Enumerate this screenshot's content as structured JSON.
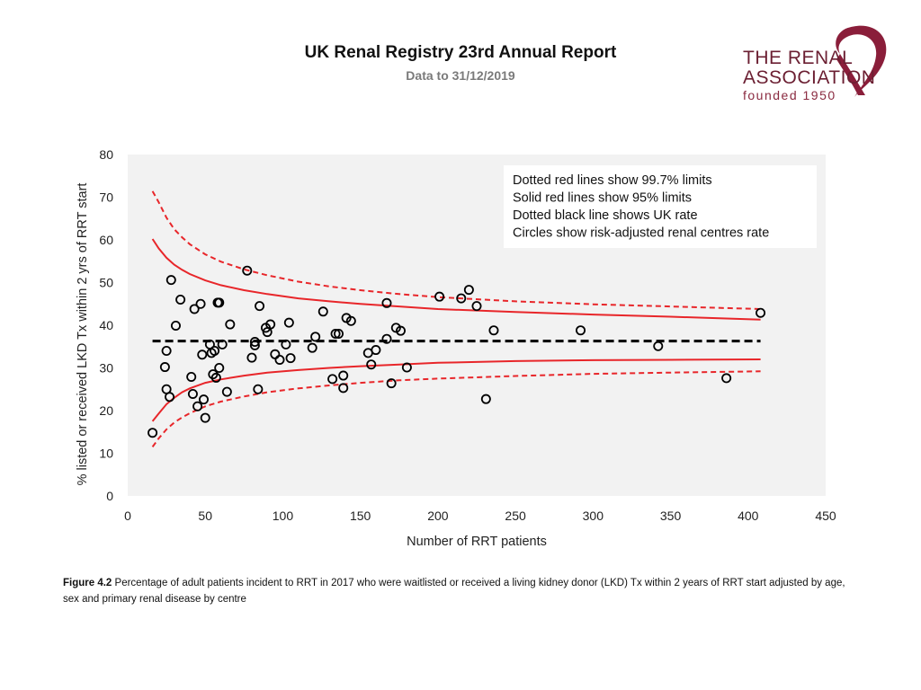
{
  "header": {
    "title": "UK Renal Registry 23rd Annual Report",
    "subtitle": "Data to 31/12/2019"
  },
  "logo": {
    "line1": "THE RENAL",
    "line2": "ASSOCIATION",
    "line3": "founded 1950",
    "color": "#6b1f32"
  },
  "chart_data": {
    "type": "scatter",
    "title": "",
    "xlabel": "Number of RRT patients",
    "ylabel": "% listed or received LKD Tx within 2 yrs of RRT start",
    "xlim": [
      0,
      450
    ],
    "ylim": [
      0,
      80
    ],
    "xticks": [
      0,
      50,
      100,
      150,
      200,
      250,
      300,
      350,
      400,
      450
    ],
    "yticks": [
      0,
      10,
      20,
      30,
      40,
      50,
      60,
      70,
      80
    ],
    "grid": false,
    "legend": [
      "Dotted red lines show 99.7% limits",
      "Solid red lines show 95% limits",
      "Dotted black line shows UK rate",
      "Circles show risk-adjusted renal centres rate"
    ],
    "legend_position": "top-right",
    "uk_rate": 36.3,
    "colors": {
      "limits": "#e8262a",
      "uk_rate": "#000000",
      "points": "#000000",
      "background": "#f2f2f2"
    },
    "funnel_x": [
      16,
      20,
      25,
      30,
      35,
      40,
      50,
      60,
      75,
      90,
      110,
      130,
      150,
      175,
      200,
      250,
      300,
      350,
      408
    ],
    "upper_95": [
      60.2,
      58.0,
      55.8,
      54.2,
      53.0,
      52.0,
      50.5,
      49.4,
      48.2,
      47.3,
      46.3,
      45.6,
      45.0,
      44.4,
      43.8,
      43.1,
      42.5,
      42.0,
      41.3
    ],
    "lower_95": [
      17.5,
      19.3,
      21.5,
      23.0,
      24.3,
      25.2,
      26.5,
      27.3,
      28.2,
      28.9,
      29.5,
      30.0,
      30.4,
      30.8,
      31.2,
      31.6,
      31.8,
      31.9,
      32.0
    ],
    "upper_997": [
      71.4,
      68.8,
      65.2,
      62.5,
      60.6,
      59.0,
      56.6,
      54.9,
      53.1,
      51.7,
      50.2,
      49.1,
      48.2,
      47.3,
      46.6,
      45.6,
      44.9,
      44.4,
      43.8
    ],
    "lower_997": [
      11.5,
      13.5,
      15.6,
      17.2,
      18.4,
      19.4,
      21.0,
      22.1,
      23.3,
      24.3,
      25.2,
      25.9,
      26.5,
      27.1,
      27.5,
      28.1,
      28.6,
      28.9,
      29.2
    ],
    "points": [
      {
        "x": 16,
        "y": 14.8
      },
      {
        "x": 24,
        "y": 30.2
      },
      {
        "x": 25,
        "y": 34.0
      },
      {
        "x": 25,
        "y": 25.0
      },
      {
        "x": 27,
        "y": 23.2
      },
      {
        "x": 28,
        "y": 50.6
      },
      {
        "x": 31,
        "y": 39.9
      },
      {
        "x": 34,
        "y": 46.0
      },
      {
        "x": 41,
        "y": 27.9
      },
      {
        "x": 42,
        "y": 23.9
      },
      {
        "x": 43,
        "y": 43.8
      },
      {
        "x": 45,
        "y": 21.0
      },
      {
        "x": 47,
        "y": 45.0
      },
      {
        "x": 48,
        "y": 33.1
      },
      {
        "x": 49,
        "y": 22.6
      },
      {
        "x": 50,
        "y": 18.3
      },
      {
        "x": 53,
        "y": 35.5
      },
      {
        "x": 54,
        "y": 33.5
      },
      {
        "x": 55,
        "y": 28.5
      },
      {
        "x": 56,
        "y": 34.0
      },
      {
        "x": 57,
        "y": 27.7
      },
      {
        "x": 58,
        "y": 45.3
      },
      {
        "x": 59,
        "y": 45.3
      },
      {
        "x": 59,
        "y": 30.0
      },
      {
        "x": 61,
        "y": 35.5
      },
      {
        "x": 64,
        "y": 24.4
      },
      {
        "x": 66,
        "y": 40.2
      },
      {
        "x": 77,
        "y": 52.8
      },
      {
        "x": 80,
        "y": 32.4
      },
      {
        "x": 82,
        "y": 35.3
      },
      {
        "x": 82,
        "y": 36.1
      },
      {
        "x": 84,
        "y": 25.0
      },
      {
        "x": 85,
        "y": 44.5
      },
      {
        "x": 89,
        "y": 39.4
      },
      {
        "x": 90,
        "y": 38.4
      },
      {
        "x": 92,
        "y": 40.2
      },
      {
        "x": 95,
        "y": 33.2
      },
      {
        "x": 98,
        "y": 31.9
      },
      {
        "x": 102,
        "y": 35.5
      },
      {
        "x": 104,
        "y": 40.6
      },
      {
        "x": 105,
        "y": 32.3
      },
      {
        "x": 126,
        "y": 43.2
      },
      {
        "x": 119,
        "y": 34.7
      },
      {
        "x": 121,
        "y": 37.3
      },
      {
        "x": 132,
        "y": 27.4
      },
      {
        "x": 134,
        "y": 38.0
      },
      {
        "x": 136,
        "y": 38.0
      },
      {
        "x": 139,
        "y": 28.2
      },
      {
        "x": 139,
        "y": 25.3
      },
      {
        "x": 141,
        "y": 41.7
      },
      {
        "x": 144,
        "y": 41.0
      },
      {
        "x": 155,
        "y": 33.5
      },
      {
        "x": 157,
        "y": 30.8
      },
      {
        "x": 160,
        "y": 34.2
      },
      {
        "x": 167,
        "y": 45.2
      },
      {
        "x": 167,
        "y": 36.8
      },
      {
        "x": 170,
        "y": 26.4
      },
      {
        "x": 173,
        "y": 39.4
      },
      {
        "x": 176,
        "y": 38.7
      },
      {
        "x": 180,
        "y": 30.1
      },
      {
        "x": 201,
        "y": 46.7
      },
      {
        "x": 215,
        "y": 46.3
      },
      {
        "x": 220,
        "y": 48.3
      },
      {
        "x": 225,
        "y": 44.5
      },
      {
        "x": 231,
        "y": 22.7
      },
      {
        "x": 236,
        "y": 38.8
      },
      {
        "x": 292,
        "y": 38.8
      },
      {
        "x": 342,
        "y": 35.1
      },
      {
        "x": 386,
        "y": 27.6
      },
      {
        "x": 408,
        "y": 42.9
      }
    ]
  },
  "caption": {
    "label": "Figure 4.2",
    "text": " Percentage of adult patients incident to RRT in 2017 who were waitlisted or received a living kidney donor (LKD) Tx within 2 years of RRT start adjusted by age, sex and primary renal disease by centre"
  }
}
